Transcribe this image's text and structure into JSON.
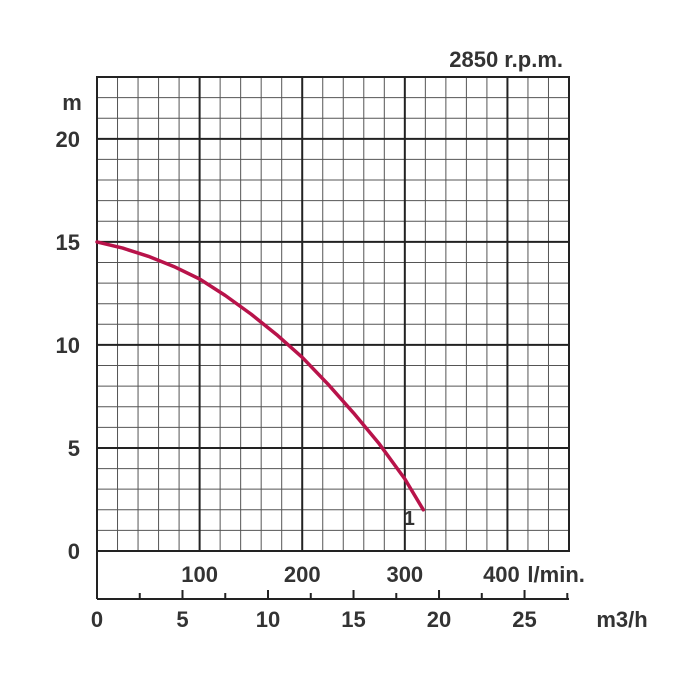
{
  "chart_data": {
    "type": "line",
    "speed_label": "2850 r.p.m.",
    "y_unit": "m",
    "x_unit_lmin": "l/min.",
    "x_unit_m3h": "m3/h",
    "y_ticks": [
      "0",
      "5",
      "10",
      "15",
      "20"
    ],
    "x_ticks_lmin": [
      "100",
      "200",
      "300",
      "400"
    ],
    "x_ticks_m3h": [
      "0",
      "5",
      "10",
      "15",
      "20",
      "25"
    ],
    "xlim_lmin": [
      0,
      460
    ],
    "ylim": [
      0,
      23
    ],
    "minor_grid_lmin": 20,
    "minor_grid_m": 1,
    "grid": true,
    "curve_color": "#b8134a",
    "series": [
      {
        "name": "1",
        "x_lmin": [
          0,
          25,
          50,
          75,
          100,
          125,
          150,
          175,
          200,
          225,
          250,
          275,
          300,
          318
        ],
        "y_m": [
          15.0,
          14.7,
          14.3,
          13.8,
          13.2,
          12.4,
          11.5,
          10.5,
          9.4,
          8.1,
          6.7,
          5.2,
          3.5,
          2.0
        ]
      }
    ]
  }
}
